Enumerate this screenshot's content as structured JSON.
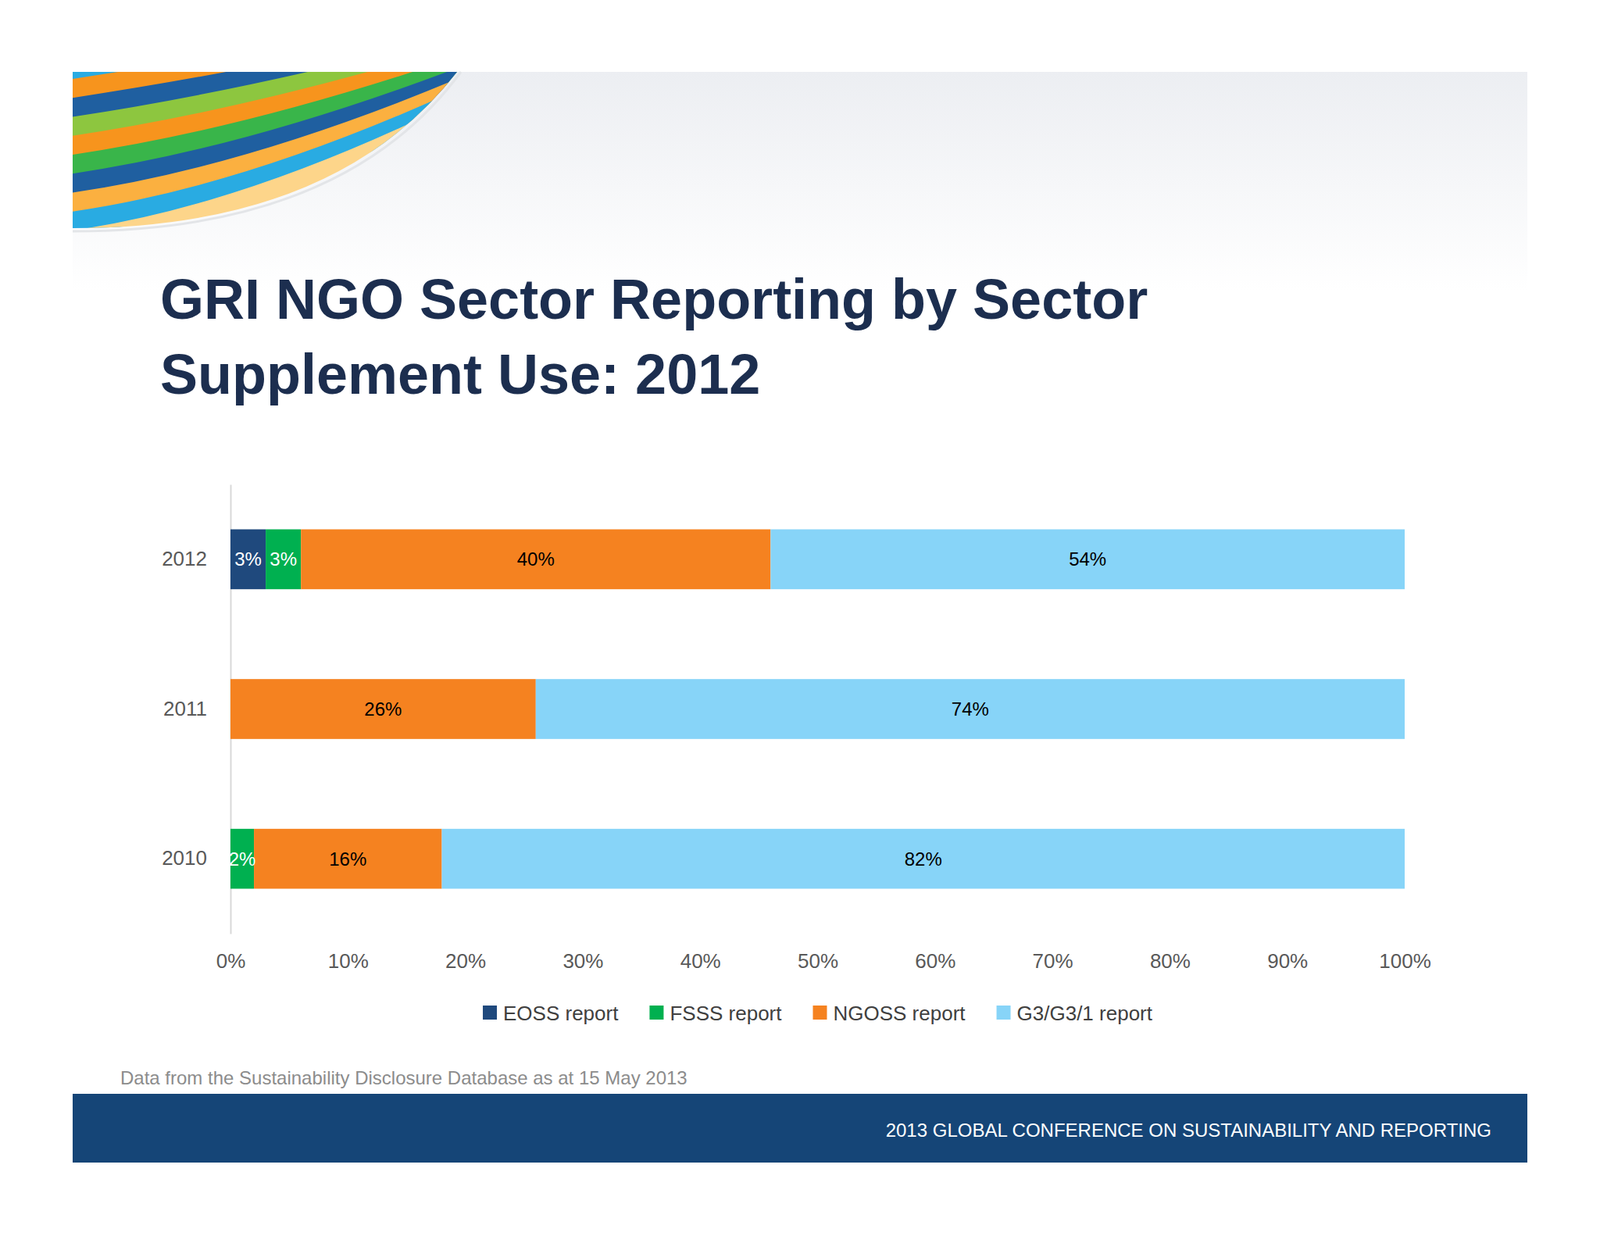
{
  "chart_data": {
    "type": "bar",
    "orientation": "horizontal",
    "stacked": true,
    "title": "GRI NGO Sector Reporting by Sector Supplement Use: 2012",
    "annotations": [
      "Data from the Sustainability Disclosure Database as at 15 May 2013",
      "2013 GLOBAL CONFERENCE ON SUSTAINABILITY AND REPORTING"
    ],
    "categories": [
      "2012",
      "2011",
      "2010"
    ],
    "series": [
      {
        "name": "EOSS report",
        "color": "#1f497d",
        "values": [
          3,
          null,
          null
        ],
        "value_labels": [
          "3%",
          null,
          null
        ]
      },
      {
        "name": "FSSS report",
        "color": "#00b050",
        "values": [
          3,
          null,
          2
        ],
        "value_labels": [
          "3%",
          null,
          "2%"
        ]
      },
      {
        "name": "NGOSS report",
        "color": "#f58220",
        "values": [
          40,
          26,
          16
        ],
        "value_labels": [
          "40%",
          "26%",
          "16%"
        ]
      },
      {
        "name": "G3/G3/1 report",
        "color": "#87d4f8",
        "values": [
          54,
          74,
          82
        ],
        "value_labels": [
          "54%",
          "74%",
          "82%"
        ]
      }
    ],
    "xlim": [
      0,
      100
    ],
    "xticks": [
      {
        "value": 0,
        "label": "0%"
      },
      {
        "value": 10,
        "label": "10%"
      },
      {
        "value": 20,
        "label": "20%"
      },
      {
        "value": 30,
        "label": "30%"
      },
      {
        "value": 40,
        "label": "40%"
      },
      {
        "value": 50,
        "label": "50%"
      },
      {
        "value": 60,
        "label": "60%"
      },
      {
        "value": 70,
        "label": "70%"
      },
      {
        "value": 80,
        "label": "80%"
      },
      {
        "value": 90,
        "label": "90%"
      },
      {
        "value": 100,
        "label": "100%"
      }
    ],
    "data_labels": true,
    "grid": false,
    "legend": "bottom"
  }
}
